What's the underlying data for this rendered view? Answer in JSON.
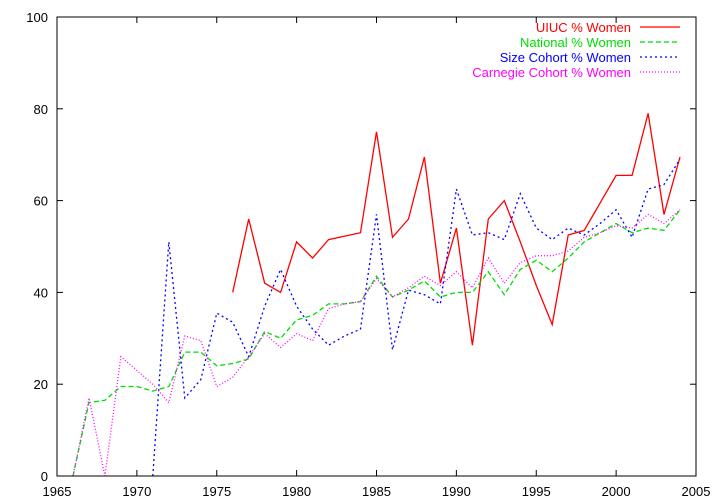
{
  "chart_data": {
    "type": "line",
    "title": "",
    "xlabel": "",
    "ylabel": "",
    "xlim": [
      1965,
      2005
    ],
    "ylim": [
      0,
      100
    ],
    "xticks": [
      1965,
      1970,
      1975,
      1980,
      1985,
      1990,
      1995,
      2000,
      2005
    ],
    "yticks": [
      0,
      20,
      40,
      60,
      80,
      100
    ],
    "grid": false,
    "legend_position": "top-right",
    "series": [
      {
        "name": "UIUC % Women",
        "color": "#ff0000",
        "dash": "solid",
        "points": [
          [
            1976,
            40
          ],
          [
            1977,
            56
          ],
          [
            1978,
            42
          ],
          [
            1979,
            40
          ],
          [
            1980,
            51
          ],
          [
            1981,
            47.5
          ],
          [
            1982,
            51.5
          ],
          [
            1984,
            53
          ],
          [
            1985,
            75
          ],
          [
            1986,
            52
          ],
          [
            1987,
            56
          ],
          [
            1988,
            69.5
          ],
          [
            1989,
            42
          ],
          [
            1990,
            54
          ],
          [
            1991,
            28.5
          ],
          [
            1992,
            56
          ],
          [
            1993,
            60
          ],
          [
            1994,
            51
          ],
          [
            1995,
            41.5
          ],
          [
            1996,
            33
          ],
          [
            1997,
            52.5
          ],
          [
            1998,
            53.5
          ],
          [
            2000,
            65.5
          ],
          [
            2001,
            65.5
          ],
          [
            2002,
            79
          ],
          [
            2003,
            57
          ],
          [
            2004,
            69.5
          ]
        ]
      },
      {
        "name": "National % Women",
        "color": "#00dd00",
        "dash": "dashed",
        "points": [
          [
            1966,
            0
          ],
          [
            1967,
            16
          ],
          [
            1968,
            16.5
          ],
          [
            1969,
            19.5
          ],
          [
            1970,
            19.5
          ],
          [
            1971,
            18.5
          ],
          [
            1972,
            19.5
          ],
          [
            1973,
            27
          ],
          [
            1974,
            27
          ],
          [
            1975,
            24
          ],
          [
            1976,
            24.5
          ],
          [
            1977,
            25.5
          ],
          [
            1978,
            31.5
          ],
          [
            1979,
            30
          ],
          [
            1980,
            34
          ],
          [
            1981,
            35
          ],
          [
            1982,
            37.5
          ],
          [
            1983,
            37.5
          ],
          [
            1984,
            38
          ],
          [
            1985,
            43.5
          ],
          [
            1986,
            39
          ],
          [
            1987,
            40.5
          ],
          [
            1988,
            42.5
          ],
          [
            1989,
            39
          ],
          [
            1990,
            40
          ],
          [
            1991,
            40
          ],
          [
            1992,
            44.5
          ],
          [
            1993,
            39.5
          ],
          [
            1994,
            45
          ],
          [
            1995,
            47
          ],
          [
            1996,
            44.5
          ],
          [
            1997,
            47.5
          ],
          [
            1998,
            51
          ],
          [
            1999,
            53
          ],
          [
            2000,
            55
          ],
          [
            2001,
            53
          ],
          [
            2002,
            54
          ],
          [
            2003,
            53.5
          ],
          [
            2004,
            58
          ]
        ]
      },
      {
        "name": "Size Cohort % Women",
        "color": "#0000ff",
        "dash": "dotted",
        "points": [
          [
            1971,
            0
          ],
          [
            1972,
            51
          ],
          [
            1973,
            17
          ],
          [
            1974,
            21
          ],
          [
            1975,
            35.5
          ],
          [
            1976,
            33.5
          ],
          [
            1977,
            26
          ],
          [
            1978,
            37
          ],
          [
            1979,
            45
          ],
          [
            1980,
            37
          ],
          [
            1981,
            32
          ],
          [
            1982,
            28.5
          ],
          [
            1983,
            30.5
          ],
          [
            1984,
            32
          ],
          [
            1985,
            57
          ],
          [
            1986,
            27.5
          ],
          [
            1987,
            40.5
          ],
          [
            1988,
            39.5
          ],
          [
            1989,
            37.5
          ],
          [
            1990,
            62.5
          ],
          [
            1991,
            52.5
          ],
          [
            1992,
            53
          ],
          [
            1993,
            51.5
          ],
          [
            1994,
            61.5
          ],
          [
            1995,
            54
          ],
          [
            1996,
            51.5
          ],
          [
            1997,
            54
          ],
          [
            1998,
            52.5
          ],
          [
            1999,
            55
          ],
          [
            2000,
            58
          ],
          [
            2001,
            52
          ],
          [
            2002,
            62.5
          ],
          [
            2003,
            63.5
          ],
          [
            2004,
            69
          ]
        ]
      },
      {
        "name": "Carnegie Cohort % Women",
        "color": "#ff00ff",
        "dash": "densedot",
        "points": [
          [
            1966,
            0
          ],
          [
            1967,
            17
          ],
          [
            1968,
            0
          ],
          [
            1969,
            26
          ],
          [
            1970,
            23
          ],
          [
            1971,
            20
          ],
          [
            1972,
            16
          ],
          [
            1973,
            30.5
          ],
          [
            1974,
            29.5
          ],
          [
            1975,
            19.5
          ],
          [
            1976,
            21.5
          ],
          [
            1977,
            26
          ],
          [
            1978,
            31
          ],
          [
            1979,
            28
          ],
          [
            1980,
            31
          ],
          [
            1981,
            29.5
          ],
          [
            1982,
            36.5
          ],
          [
            1983,
            37.5
          ],
          [
            1984,
            38
          ],
          [
            1985,
            43
          ],
          [
            1986,
            39
          ],
          [
            1987,
            41
          ],
          [
            1988,
            43.5
          ],
          [
            1989,
            41.5
          ],
          [
            1990,
            44.5
          ],
          [
            1991,
            41
          ],
          [
            1992,
            47.5
          ],
          [
            1993,
            42
          ],
          [
            1994,
            46.5
          ],
          [
            1995,
            48
          ],
          [
            1996,
            48
          ],
          [
            1997,
            49
          ],
          [
            1998,
            52
          ],
          [
            1999,
            53
          ],
          [
            2000,
            54.5
          ],
          [
            2001,
            54
          ],
          [
            2002,
            57
          ],
          [
            2003,
            55
          ],
          [
            2004,
            58
          ]
        ]
      }
    ]
  }
}
